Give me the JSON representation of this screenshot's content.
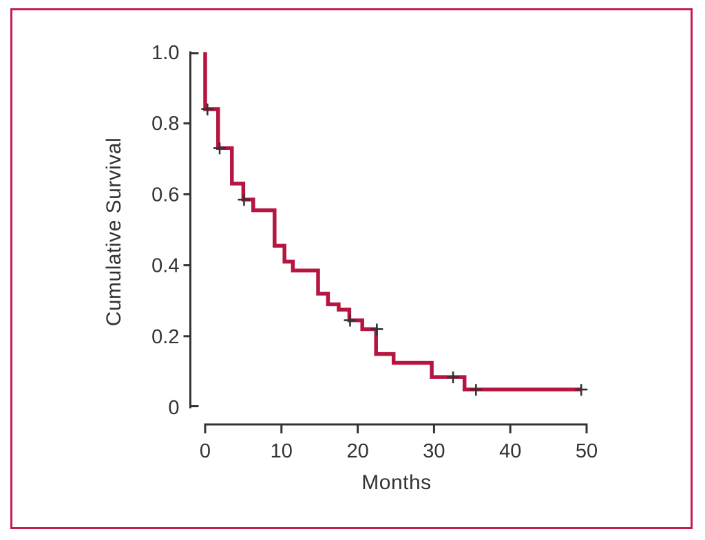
{
  "figure": {
    "border_color": "#c21e4c",
    "background_color": "#ffffff",
    "axis_color": "#333333",
    "text_color": "#333333"
  },
  "chart_data": {
    "type": "line",
    "subtype": "kaplan-meier-step-curve",
    "title": "",
    "xlabel": "Months",
    "ylabel": "Cumulative Survival",
    "xlim": [
      0,
      50
    ],
    "ylim": [
      0,
      1.0
    ],
    "grid": false,
    "legend": "none",
    "x_ticks": [
      0,
      10,
      20,
      30,
      40,
      50
    ],
    "x_tick_labels": [
      "0",
      "10",
      "20",
      "30",
      "40",
      "50"
    ],
    "y_ticks": [
      1.0,
      0.8,
      0.6,
      0.4,
      0.2,
      0
    ],
    "y_tick_labels": [
      "1.0",
      "0.8",
      "0.6",
      "0.4",
      "0.2",
      "0"
    ],
    "series": [
      {
        "name": "Cumulative Survival",
        "color": "#b5153f",
        "line_width": 5.5,
        "step_points": [
          [
            0,
            1.0
          ],
          [
            0,
            0.84
          ],
          [
            1.7,
            0.84
          ],
          [
            1.7,
            0.73
          ],
          [
            3.5,
            0.73
          ],
          [
            3.5,
            0.63
          ],
          [
            5.0,
            0.63
          ],
          [
            5.0,
            0.585
          ],
          [
            6.3,
            0.585
          ],
          [
            6.3,
            0.555
          ],
          [
            9.1,
            0.555
          ],
          [
            9.1,
            0.455
          ],
          [
            10.4,
            0.455
          ],
          [
            10.4,
            0.41
          ],
          [
            11.5,
            0.41
          ],
          [
            11.5,
            0.385
          ],
          [
            14.8,
            0.385
          ],
          [
            14.8,
            0.32
          ],
          [
            16.1,
            0.32
          ],
          [
            16.1,
            0.29
          ],
          [
            17.5,
            0.29
          ],
          [
            17.5,
            0.275
          ],
          [
            18.9,
            0.275
          ],
          [
            18.9,
            0.245
          ],
          [
            20.6,
            0.245
          ],
          [
            20.6,
            0.22
          ],
          [
            22.4,
            0.22
          ],
          [
            22.4,
            0.15
          ],
          [
            24.7,
            0.15
          ],
          [
            24.7,
            0.125
          ],
          [
            29.7,
            0.125
          ],
          [
            29.7,
            0.085
          ],
          [
            34.0,
            0.085
          ],
          [
            34.0,
            0.05
          ],
          [
            49.3,
            0.05
          ]
        ],
        "censor_marks": [
          [
            0.3,
            0.84
          ],
          [
            1.9,
            0.73
          ],
          [
            5.1,
            0.585
          ],
          [
            19.0,
            0.245
          ],
          [
            22.5,
            0.22
          ],
          [
            32.5,
            0.085
          ],
          [
            35.5,
            0.05
          ],
          [
            49.3,
            0.05
          ]
        ]
      }
    ]
  }
}
